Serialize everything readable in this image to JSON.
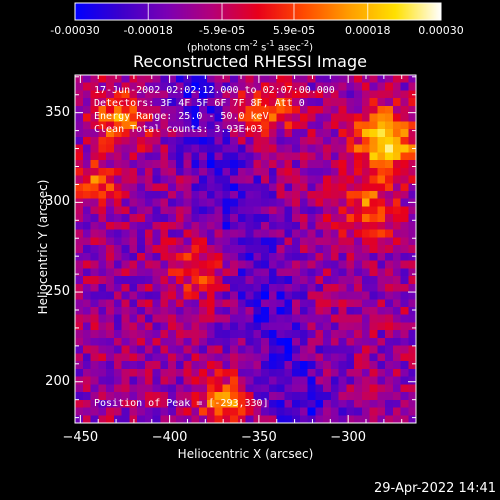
{
  "colorbar": {
    "ticks": [
      "-0.00030",
      "-0.00018",
      "-5.9e-05",
      "5.9e-05",
      "0.00018",
      "0.00030"
    ],
    "tick_values": [
      -0.0003,
      -0.00018,
      -5.9e-05,
      5.9e-05,
      0.00018,
      0.0003
    ],
    "range": [
      -0.0003,
      0.0003
    ],
    "unit_prefix": "(photons cm",
    "unit_exp1": "-2",
    "unit_mid": " s",
    "unit_exp2": "-1",
    "unit_mid2": " asec",
    "unit_exp3": "-2",
    "unit_suffix": ")",
    "colors": [
      "#0000ff",
      "#3b00cc",
      "#7a00b4",
      "#b40078",
      "#e8001a",
      "#ff4a00",
      "#ff9d00",
      "#ffe000",
      "#ffffff"
    ]
  },
  "chart_data": {
    "type": "heatmap",
    "title": "Reconstructed RHESSI Image",
    "xlabel": "Heliocentric X (arcsec)",
    "ylabel": "Heliocentric Y (arcsec)",
    "xlim": [
      -453,
      -262
    ],
    "ylim": [
      177,
      371
    ],
    "xticks": [
      -450,
      -400,
      -350,
      -300
    ],
    "yticks": [
      200,
      250,
      300,
      350
    ],
    "peak_position": [
      -293,
      330
    ],
    "total_counts": "3.93E+03",
    "energy_range_kev": [
      25.0,
      50.0
    ]
  },
  "info": {
    "time_range": "17-Jun-2002 02:02:12.000 to 02:07:00.000",
    "detectors": "Detectors: 3F 4F 5F 6F 7F 8F, Att 0",
    "energy": "Energy Range: 25.0 - 50.0 keV",
    "clean": "Clean     Total counts: 3.93E+03",
    "peak": "Position of Peak = [-293,330]"
  },
  "timestamp": "29-Apr-2022 14:41"
}
